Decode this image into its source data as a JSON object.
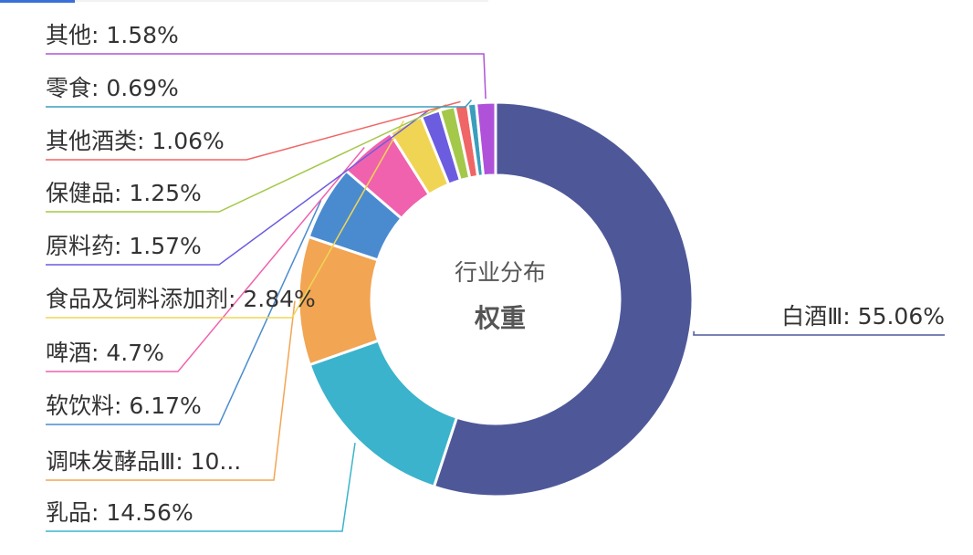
{
  "chart_data": {
    "type": "donut",
    "center_title": "行业分布",
    "center_subtitle": "权重",
    "labels": [
      "白酒Ⅲ: 55.06%",
      "乳品: 14.56%",
      "调味发酵品Ⅲ: 10...",
      "软饮料: 6.17%",
      "啤酒: 4.7%",
      "食品及饲料添加剂: 2.84%",
      "原料药: 1.57%",
      "保健品: 1.25%",
      "其他酒类: 1.06%",
      "零食: 0.69%",
      "其他: 1.58%"
    ],
    "values": [
      55.06,
      14.56,
      10.52,
      6.17,
      4.7,
      2.84,
      1.57,
      1.25,
      1.06,
      0.69,
      1.58
    ],
    "colors": [
      "#4e5899",
      "#3bb3cc",
      "#f2a553",
      "#4a8bd0",
      "#f062ad",
      "#f0d555",
      "#6b5ce0",
      "#a4c84a",
      "#f06565",
      "#3a9ebd",
      "#b052d9"
    ]
  }
}
